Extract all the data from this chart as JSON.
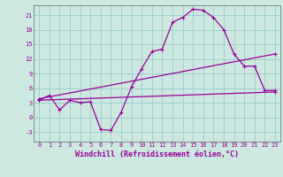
{
  "xlabel": "Windchill (Refroidissement éolien,°C)",
  "bg_color": "#cce8e0",
  "line_color": "#990099",
  "grid_color": "#99cccc",
  "xlim": [
    -0.5,
    23.5
  ],
  "ylim": [
    -5,
    23
  ],
  "xticks": [
    0,
    1,
    2,
    3,
    4,
    5,
    6,
    7,
    8,
    9,
    10,
    11,
    12,
    13,
    14,
    15,
    16,
    17,
    18,
    19,
    20,
    21,
    22,
    23
  ],
  "yticks": [
    -3,
    0,
    3,
    6,
    9,
    12,
    15,
    18,
    21
  ],
  "curve1_x": [
    0,
    1,
    2,
    3,
    4,
    5,
    6,
    7,
    8,
    9,
    10,
    11,
    12,
    13,
    14,
    15,
    16,
    17,
    18,
    19,
    20,
    21,
    22,
    23
  ],
  "curve1_y": [
    3.5,
    4.5,
    1.5,
    3.5,
    3.0,
    3.2,
    -2.5,
    -2.7,
    1.0,
    6.2,
    10.0,
    13.5,
    14.0,
    19.5,
    20.5,
    22.2,
    22.0,
    20.5,
    18.0,
    13.0,
    10.5,
    10.5,
    5.5,
    5.5
  ],
  "curve2_x": [
    0,
    23
  ],
  "curve2_y": [
    3.8,
    13.0
  ],
  "curve3_x": [
    0,
    23
  ],
  "curve3_y": [
    3.5,
    5.2
  ],
  "tick_fontsize": 5.0,
  "xlabel_fontsize": 6.0
}
